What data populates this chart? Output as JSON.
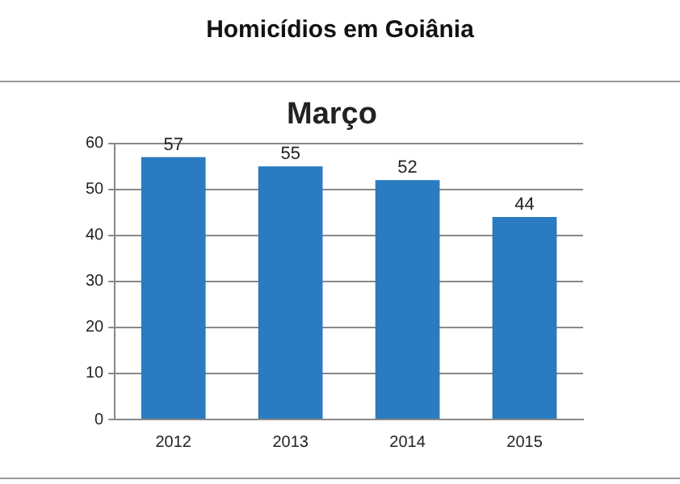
{
  "chart_data": {
    "type": "bar",
    "title": "Homicídios em Goiânia",
    "subtitle": "Março",
    "categories": [
      "2012",
      "2013",
      "2014",
      "2015"
    ],
    "values": [
      57,
      55,
      52,
      44
    ],
    "color": "#2a7bbf",
    "ylim": [
      0,
      60
    ],
    "yticks": [
      0,
      10,
      20,
      30,
      40,
      50,
      60
    ],
    "grid": "y",
    "legend": false,
    "data_labels": true
  }
}
